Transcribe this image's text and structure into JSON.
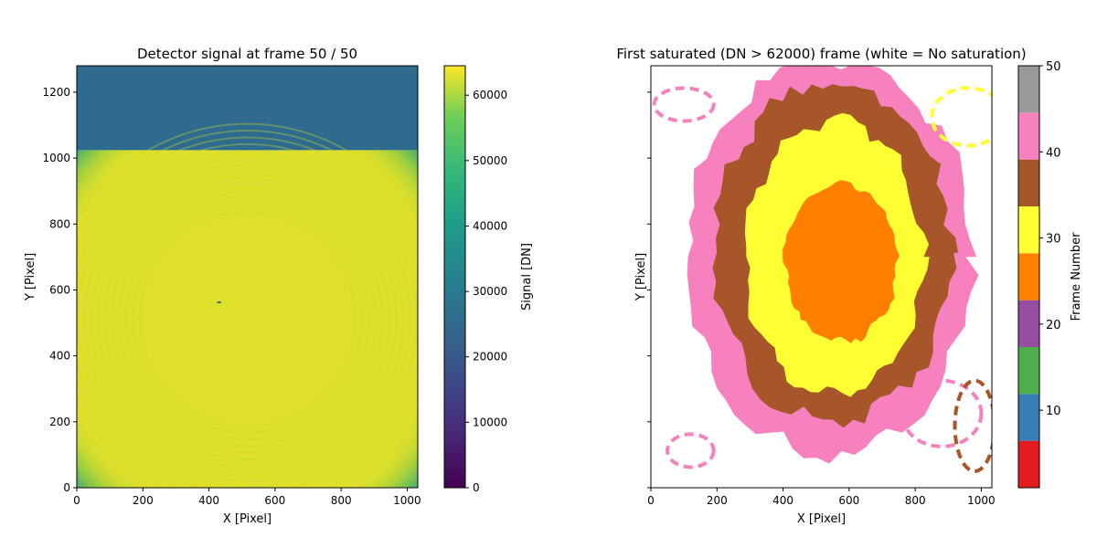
{
  "chart_data": [
    {
      "type": "heatmap",
      "title": "Detector signal at frame 50 / 50",
      "xlabel": "X [Pixel]",
      "ylabel": "Y [Pixel]",
      "xlim": [
        0,
        1032
      ],
      "ylim": [
        0,
        1280
      ],
      "x_ticks": [
        0,
        200,
        400,
        600,
        800,
        1000
      ],
      "y_ticks": [
        0,
        200,
        400,
        600,
        800,
        1000,
        1200
      ],
      "colorbar": {
        "label": "Signal [DN]",
        "colormap": "viridis",
        "range": [
          0,
          64500
        ],
        "ticks": [
          0,
          10000,
          20000,
          30000,
          40000,
          50000,
          60000
        ]
      },
      "regions": [
        {
          "name": "illuminated",
          "x": [
            0,
            1032
          ],
          "y": [
            0,
            1024
          ],
          "value": 63500,
          "color": "#dfe02a"
        },
        {
          "name": "upper band",
          "x": [
            0,
            1032
          ],
          "y": [
            1024,
            1280
          ],
          "value": 19500,
          "color": "#2e6b8e"
        }
      ]
    },
    {
      "type": "heatmap",
      "title": "First saturated (DN > 62000) frame (white = No saturation)",
      "xlabel": "X [Pixel]",
      "ylabel": "Y [Pixel]",
      "xlim": [
        0,
        1032
      ],
      "ylim": [
        0,
        1024
      ],
      "x_ticks": [
        0,
        200,
        400,
        600,
        800,
        1000
      ],
      "colorbar": {
        "label": "Frame Number",
        "colormap": "Set1",
        "range": [
          1,
          50
        ],
        "ticks": [
          10,
          20,
          30,
          40,
          50
        ],
        "bins": [
          {
            "from": 1,
            "to": 7,
            "color": "#e41a1c"
          },
          {
            "from": 7,
            "to": 13,
            "color": "#377eb8"
          },
          {
            "from": 13,
            "to": 19,
            "color": "#4daf4a"
          },
          {
            "from": 19,
            "to": 25,
            "color": "#984ea3"
          },
          {
            "from": 25,
            "to": 31,
            "color": "#ff7f00"
          },
          {
            "from": 31,
            "to": 37,
            "color": "#ffff33"
          },
          {
            "from": 37,
            "to": 43,
            "color": "#a65628"
          },
          {
            "from": 43,
            "to": 49,
            "color": "#f781bf"
          },
          {
            "from": 49,
            "to": 50,
            "color": "#999999"
          }
        ]
      },
      "zones": [
        {
          "frame": 28,
          "color": "#ff7f00",
          "cx": 575,
          "cy": 545,
          "rx": 170,
          "ry": 190
        },
        {
          "frame": 34,
          "color": "#ffff33",
          "cx": 555,
          "cy": 560,
          "rx": 270,
          "ry": 330
        },
        {
          "frame": 40,
          "color": "#a65628",
          "cx": 550,
          "cy": 570,
          "rx": 360,
          "ry": 410
        },
        {
          "frame": 46,
          "color": "#f781bf",
          "cx": 540,
          "cy": 560,
          "rx": 430,
          "ry": 480
        }
      ]
    }
  ]
}
